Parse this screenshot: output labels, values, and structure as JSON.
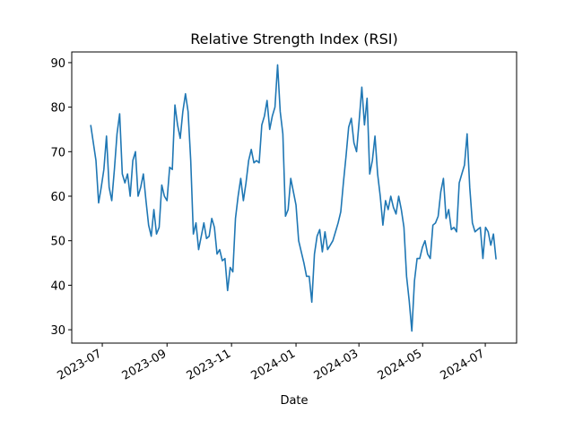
{
  "chart_data": {
    "type": "line",
    "title": "Relative Strength Index (RSI)",
    "x_label": "Date",
    "color": "#1f77b4",
    "grid": false,
    "values": [
      76,
      72,
      68,
      58.5,
      62,
      66,
      73.5,
      62,
      59,
      66,
      74,
      78.5,
      65,
      63,
      65,
      60,
      68,
      70,
      60,
      62,
      65,
      59,
      53.5,
      51,
      57,
      51.5,
      53,
      62.5,
      60,
      59,
      66.5,
      66,
      80.5,
      76,
      73,
      79,
      83,
      79,
      68,
      51.5,
      54,
      48,
      51,
      54,
      50.5,
      51,
      55,
      53,
      47,
      48,
      45.5,
      46,
      38.8,
      44,
      43,
      55,
      60,
      64,
      59,
      63,
      68,
      70.5,
      67.5,
      68,
      67.5,
      76,
      78,
      81.5,
      75,
      78,
      80,
      89.5,
      79,
      74,
      55.5,
      57,
      64,
      61,
      58,
      50,
      47.5,
      45,
      42,
      42,
      36.2,
      47,
      51,
      52.5,
      47.5,
      52,
      48,
      49,
      50,
      52,
      54,
      56.5,
      63,
      69,
      75.5,
      77.5,
      72,
      70,
      77,
      84.5,
      76,
      82,
      65,
      68,
      73.5,
      65,
      60,
      53.5,
      59,
      57,
      60,
      57.5,
      56,
      60,
      57,
      53,
      42,
      36.5,
      29.7,
      41,
      46,
      46,
      48.5,
      50,
      47,
      46,
      53.5,
      54,
      55.5,
      61,
      64,
      55,
      57,
      52.5,
      53,
      52,
      63,
      65,
      67,
      74,
      62,
      54,
      52,
      52.5,
      53,
      46,
      53,
      52,
      49,
      51.5,
      45.8
    ],
    "xlim": [
      -7.2,
      161.8
    ],
    "xticks": [
      {
        "value": 4.4,
        "label": "2023-07"
      },
      {
        "value": 29.0,
        "label": "2023-09"
      },
      {
        "value": 53.5,
        "label": "2023-11"
      },
      {
        "value": 78.0,
        "label": "2024-01"
      },
      {
        "value": 101.9,
        "label": "2024-03"
      },
      {
        "value": 126.1,
        "label": "2024-05"
      },
      {
        "value": 149.9,
        "label": "2024-07"
      }
    ],
    "ylim": [
      27.0,
      92.4
    ],
    "yticks": [
      30,
      40,
      50,
      60,
      70,
      80,
      90
    ]
  }
}
